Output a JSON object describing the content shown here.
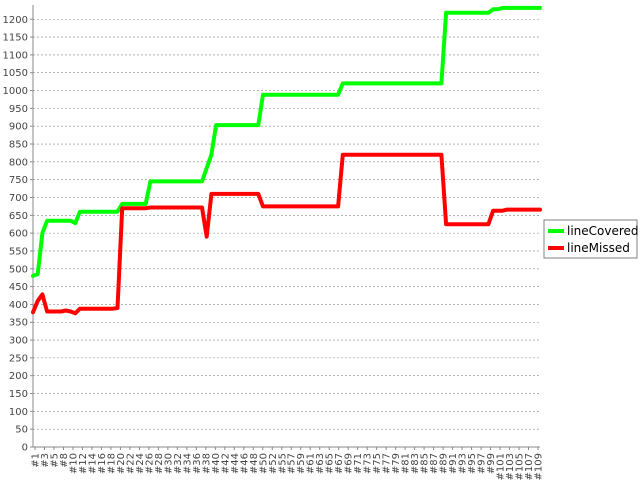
{
  "chart_data": {
    "type": "line",
    "ylim": [
      0,
      1240
    ],
    "yticks": [
      0,
      50,
      100,
      150,
      200,
      250,
      300,
      350,
      400,
      450,
      500,
      550,
      600,
      650,
      700,
      750,
      800,
      850,
      900,
      950,
      1000,
      1050,
      1100,
      1150,
      1200
    ],
    "x_labels": [
      "#1",
      "#3",
      "#5",
      "#8",
      "#10",
      "#12",
      "#14",
      "#16",
      "#18",
      "#20",
      "#22",
      "#24",
      "#26",
      "#28",
      "#30",
      "#32",
      "#34",
      "#36",
      "#38",
      "#40",
      "#42",
      "#44",
      "#46",
      "#48",
      "#50",
      "#52",
      "#55",
      "#57",
      "#59",
      "#61",
      "#63",
      "#65",
      "#67",
      "#69",
      "#71",
      "#73",
      "#75",
      "#77",
      "#79",
      "#81",
      "#83",
      "#85",
      "#87",
      "#89",
      "#91",
      "#93",
      "#95",
      "#97",
      "#99",
      "#101",
      "#103",
      "#105",
      "#107",
      "#109"
    ],
    "grid": true,
    "legend_position": "right",
    "series": [
      {
        "name": "lineCovered",
        "color": "#00ff00",
        "points": [
          [
            1,
            480
          ],
          [
            2,
            485
          ],
          [
            3,
            600
          ],
          [
            4,
            635
          ],
          [
            9,
            635
          ],
          [
            10,
            628
          ],
          [
            11,
            660
          ],
          [
            19,
            660
          ],
          [
            20,
            682
          ],
          [
            25,
            682
          ],
          [
            26,
            745
          ],
          [
            37,
            745
          ],
          [
            39,
            820
          ],
          [
            40,
            903
          ],
          [
            49,
            903
          ],
          [
            50,
            988
          ],
          [
            66,
            988
          ],
          [
            67,
            1020
          ],
          [
            88,
            1020
          ],
          [
            89,
            1218
          ],
          [
            98,
            1218
          ],
          [
            99,
            1228
          ],
          [
            100,
            1228
          ],
          [
            101,
            1232
          ],
          [
            109,
            1232
          ]
        ]
      },
      {
        "name": "lineMissed",
        "color": "#ff0000",
        "points": [
          [
            1,
            378
          ],
          [
            2,
            410
          ],
          [
            3,
            428
          ],
          [
            4,
            380
          ],
          [
            7,
            380
          ],
          [
            8,
            383
          ],
          [
            9,
            380
          ],
          [
            10,
            375
          ],
          [
            11,
            388
          ],
          [
            18,
            388
          ],
          [
            19,
            390
          ],
          [
            20,
            670
          ],
          [
            25,
            670
          ],
          [
            26,
            672
          ],
          [
            37,
            672
          ],
          [
            38,
            590
          ],
          [
            39,
            710
          ],
          [
            49,
            710
          ],
          [
            50,
            675
          ],
          [
            66,
            675
          ],
          [
            67,
            820
          ],
          [
            88,
            820
          ],
          [
            89,
            625
          ],
          [
            98,
            625
          ],
          [
            99,
            663
          ],
          [
            101,
            663
          ],
          [
            102,
            666
          ],
          [
            109,
            666
          ]
        ]
      }
    ]
  }
}
